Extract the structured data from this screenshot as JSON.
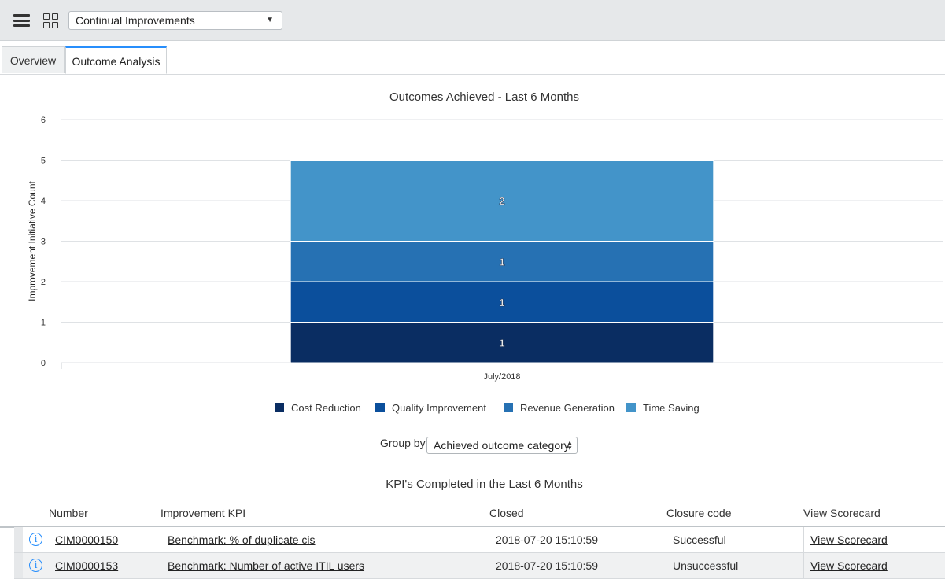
{
  "header": {
    "menu_icon": "hamburger-menu-icon",
    "apps_icon": "grid-icon",
    "dashboard_select": "Continual Improvements"
  },
  "tabs": [
    {
      "label": "Overview",
      "active": false
    },
    {
      "label": "Outcome Analysis",
      "active": true
    }
  ],
  "chart_title": "Outcomes Achieved - Last 6 Months",
  "chart_data": {
    "type": "bar",
    "stacked": true,
    "title": "Outcomes Achieved - Last 6 Months",
    "categories": [
      "July/2018"
    ],
    "ylabel": "Improvement Initiative Count",
    "xlabel": "",
    "ylim": [
      0,
      6
    ],
    "yticks": [
      0,
      1,
      2,
      3,
      4,
      5,
      6
    ],
    "grid": true,
    "legend_position": "bottom",
    "series": [
      {
        "name": "Cost Reduction",
        "values": [
          1
        ],
        "color": "#0a2d62"
      },
      {
        "name": "Quality Improvement",
        "values": [
          1
        ],
        "color": "#0b4f9c"
      },
      {
        "name": "Revenue Generation",
        "values": [
          1
        ],
        "color": "#2671b3"
      },
      {
        "name": "Time Saving",
        "values": [
          2
        ],
        "color": "#4394c9"
      }
    ]
  },
  "group_by": {
    "label": "Group by",
    "value": "Achieved outcome category"
  },
  "kpi_title": "KPI's Completed in the Last 6 Months",
  "table": {
    "columns": [
      "Number",
      "Improvement KPI",
      "Closed",
      "Closure code",
      "View Scorecard"
    ],
    "rows": [
      {
        "number": "CIM0000150",
        "kpi": "Benchmark: % of duplicate cis",
        "closed": "2018-07-20 15:10:59",
        "code": "Successful",
        "scorecard": "View Scorecard"
      },
      {
        "number": "CIM0000153",
        "kpi": "Benchmark: Number of active ITIL users",
        "closed": "2018-07-20 15:10:59",
        "code": "Unsuccessful",
        "scorecard": "View Scorecard"
      }
    ]
  },
  "colors": {
    "accent": "#278efc"
  }
}
